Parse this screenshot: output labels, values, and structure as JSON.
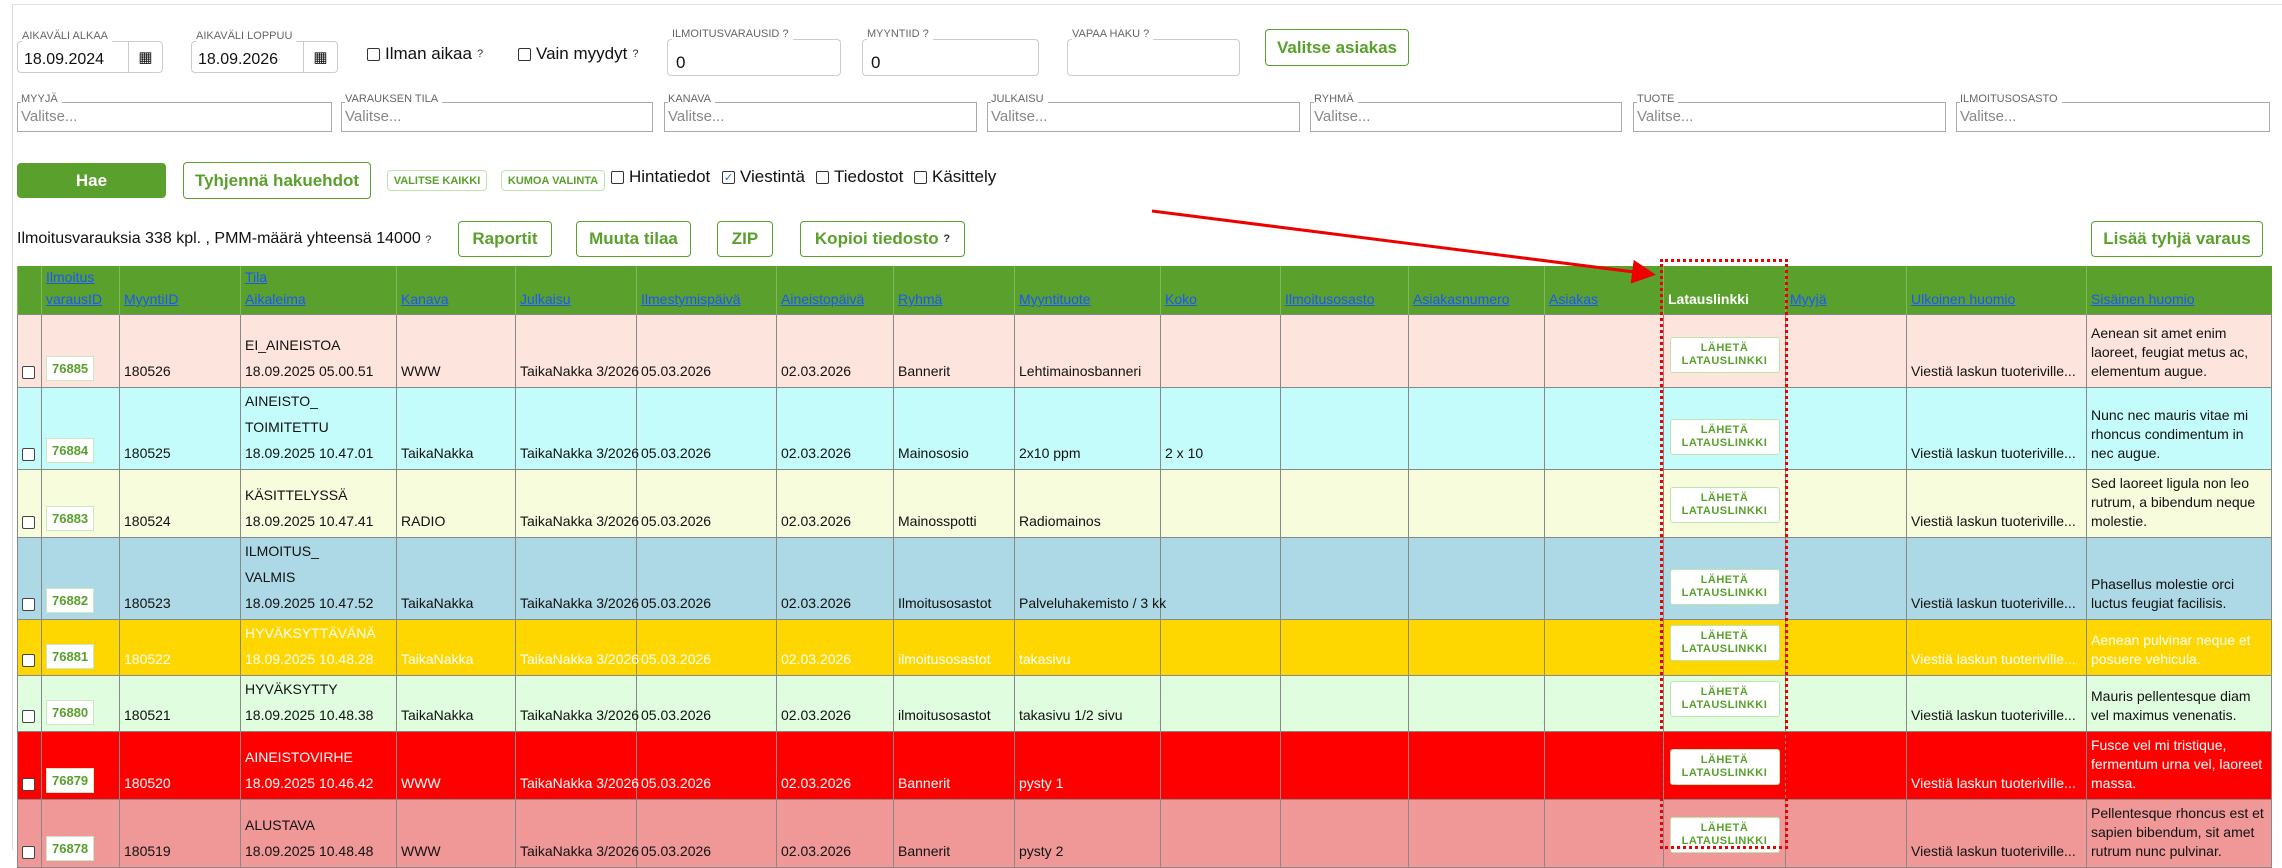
{
  "filters": {
    "date_start": {
      "label": "AIKAVÄLI ALKAA",
      "value": "18.09.2024"
    },
    "date_end": {
      "label": "AIKAVÄLI LOPPUU",
      "value": "18.09.2026"
    },
    "no_time": {
      "label": "Ilman aikaa",
      "checked": false
    },
    "only_sold": {
      "label": "Vain myydyt",
      "checked": false
    },
    "ad_booking_id": {
      "label": "ILMOITUSVARAUSID",
      "value": "0"
    },
    "sale_id": {
      "label": "MYYNTIID",
      "value": "0"
    },
    "free_search": {
      "label": "VAPAA HAKU",
      "value": ""
    },
    "choose_customer": "Valitse asiakas",
    "help_glyph": "?",
    "selects": [
      {
        "label": "MYYJÄ",
        "placeholder": "Valitse..."
      },
      {
        "label": "VARAUKSEN TILA",
        "placeholder": "Valitse..."
      },
      {
        "label": "KANAVA",
        "placeholder": "Valitse..."
      },
      {
        "label": "JULKAISU",
        "placeholder": "Valitse..."
      },
      {
        "label": "RYHMÄ",
        "placeholder": "Valitse..."
      },
      {
        "label": "TUOTE",
        "placeholder": "Valitse..."
      },
      {
        "label": "ILMOITUSOSASTO",
        "placeholder": "Valitse..."
      }
    ]
  },
  "actions": {
    "search": "Hae",
    "clear": "Tyhjennä hakuehdot",
    "select_all": "VALITSE KAIKKI",
    "deselect": "KUMOA VALINTA",
    "column_groups": [
      {
        "label": "Hintatiedot",
        "checked": false,
        "mark": ""
      },
      {
        "label": "Viestintä",
        "checked": true,
        "mark": "✓"
      },
      {
        "label": "Tiedostot",
        "checked": false,
        "mark": ""
      },
      {
        "label": "Käsittely",
        "checked": false,
        "mark": ""
      }
    ]
  },
  "summary": "Ilmoitusvarauksia 338 kpl. , PMM-määrä yhteensä 14000",
  "toolbar": {
    "reports": "Raportit",
    "change_status": "Muuta tilaa",
    "zip": "ZIP",
    "copy_file": "Kopioi tiedosto",
    "add_empty": "Lisää tyhjä varaus"
  },
  "columns": [
    "Ilmoitus varausID",
    "MyyntiID",
    "Tila Aikaleima",
    "Kanava",
    "Julkaisu",
    "Ilmestymispäivä",
    "Aineistopäivä",
    "Ryhmä",
    "Myyntituote",
    "Koko",
    "Ilmoitusosasto",
    "Asiakasnumero",
    "Asiakas",
    "Latauslinkki",
    "Myyjä",
    "Ulkoinen huomio",
    "Sisäinen huomio"
  ],
  "send_link_label": "LÄHETÄ\nLATAUSLINKKI",
  "colors": {
    "accent": "#5aa02c",
    "link": "#1a56ff",
    "highlight": "#ee0000"
  },
  "rows": [
    {
      "id": "76885",
      "sale": "180526",
      "status": "EI_AINEISTOA",
      "ts": "18.09.2025 05.00.51",
      "channel": "WWW",
      "pub": "TaikaNakka 3/2026",
      "appear": "05.03.2026",
      "material": "02.03.2026",
      "group": "Bannerit",
      "product": "Lehtimainosbanneri",
      "size": "",
      "dept": "",
      "custno": "",
      "cust": "",
      "seller": "",
      "ext": "Viestiä laskun tuoteriville...",
      "int": "Aenean sit amet enim laoreet, feugiat metus ac, elementum augue.",
      "bg": "#fde4dc",
      "fg": "#111"
    },
    {
      "id": "76884",
      "sale": "180525",
      "status": "AINEISTO_ TOIMITETTU",
      "ts": "18.09.2025 10.47.01",
      "channel": "TaikaNakka",
      "pub": "TaikaNakka 3/2026",
      "appear": "05.03.2026",
      "material": "02.03.2026",
      "group": "Mainososio",
      "product": "2x10 ppm",
      "size": "2 x 10",
      "dept": "",
      "custno": "",
      "cust": "",
      "seller": "",
      "ext": "Viestiä laskun tuoteriville...",
      "int": "Nunc nec mauris vitae mi rhoncus condimentum in nec augue.",
      "bg": "#c4fcfc",
      "fg": "#111"
    },
    {
      "id": "76883",
      "sale": "180524",
      "status": "KÄSITTELYSSÄ",
      "ts": "18.09.2025 10.47.41",
      "channel": "RADIO",
      "pub": "TaikaNakka 3/2026",
      "appear": "05.03.2026",
      "material": "02.03.2026",
      "group": "Mainosspotti",
      "product": "Radiomainos",
      "size": "",
      "dept": "",
      "custno": "",
      "cust": "",
      "seller": "",
      "ext": "Viestiä laskun tuoteriville...",
      "int": "Sed laoreet ligula non leo rutrum, a bibendum neque molestie.",
      "bg": "#f7fcdc",
      "fg": "#111"
    },
    {
      "id": "76882",
      "sale": "180523",
      "status": "ILMOITUS_ VALMIS",
      "ts": "18.09.2025 10.47.52",
      "channel": "TaikaNakka",
      "pub": "TaikaNakka 3/2026",
      "appear": "05.03.2026",
      "material": "02.03.2026",
      "group": "Ilmoitusosastot",
      "product": "Palveluhakemisto / 3 kk",
      "size": "",
      "dept": "",
      "custno": "",
      "cust": "",
      "seller": "",
      "ext": "Viestiä laskun tuoteriville...",
      "int": "Phasellus molestie orci luctus feugiat facilisis.",
      "bg": "#add8e6",
      "fg": "#111"
    },
    {
      "id": "76881",
      "sale": "180522",
      "status": "HYVÄKSYTTÄVÄNÄ",
      "ts": "18.09.2025 10.48.28",
      "channel": "TaikaNakka",
      "pub": "TaikaNakka 3/2026",
      "appear": "05.03.2026",
      "material": "02.03.2026",
      "group": "ilmoitusosastot",
      "product": "takasivu",
      "size": "",
      "dept": "",
      "custno": "",
      "cust": "",
      "seller": "",
      "ext": "Viestiä laskun tuoteriville...",
      "int": "Aenean pulvinar neque et posuere vehicula.",
      "bg": "#ffd700",
      "fg": "#ffffff"
    },
    {
      "id": "76880",
      "sale": "180521",
      "status": "HYVÄKSYTTY",
      "ts": "18.09.2025 10.48.38",
      "channel": "TaikaNakka",
      "pub": "TaikaNakka 3/2026",
      "appear": "05.03.2026",
      "material": "02.03.2026",
      "group": "ilmoitusosastot",
      "product": "takasivu 1/2 sivu",
      "size": "",
      "dept": "",
      "custno": "",
      "cust": "",
      "seller": "",
      "ext": "Viestiä laskun tuoteriville...",
      "int": "Mauris pellentesque diam vel maximus venenatis.",
      "bg": "#e0fde0",
      "fg": "#111"
    },
    {
      "id": "76879",
      "sale": "180520",
      "status": "AINEISTOVIRHE",
      "ts": "18.09.2025 10.46.42",
      "channel": "WWW",
      "pub": "TaikaNakka 3/2026",
      "appear": "05.03.2026",
      "material": "02.03.2026",
      "group": "Bannerit",
      "product": "pysty 1",
      "size": "",
      "dept": "",
      "custno": "",
      "cust": "",
      "seller": "",
      "ext": "Viestiä laskun tuoteriville...",
      "int": "Fusce vel mi tristique, fermentum urna vel, laoreet massa.",
      "bg": "#ff0000",
      "fg": "#ffffff"
    },
    {
      "id": "76878",
      "sale": "180519",
      "status": "ALUSTAVA",
      "ts": "18.09.2025 10.48.48",
      "channel": "WWW",
      "pub": "TaikaNakka 3/2026",
      "appear": "05.03.2026",
      "material": "02.03.2026",
      "group": "Bannerit",
      "product": "pysty 2",
      "size": "",
      "dept": "",
      "custno": "",
      "cust": "",
      "seller": "",
      "ext": "Viestiä laskun tuoteriville...",
      "int": "Pellentesque rhoncus est et sapien bibendum, sit amet rutrum nunc pulvinar.",
      "bg": "#f09898",
      "fg": "#111"
    }
  ]
}
